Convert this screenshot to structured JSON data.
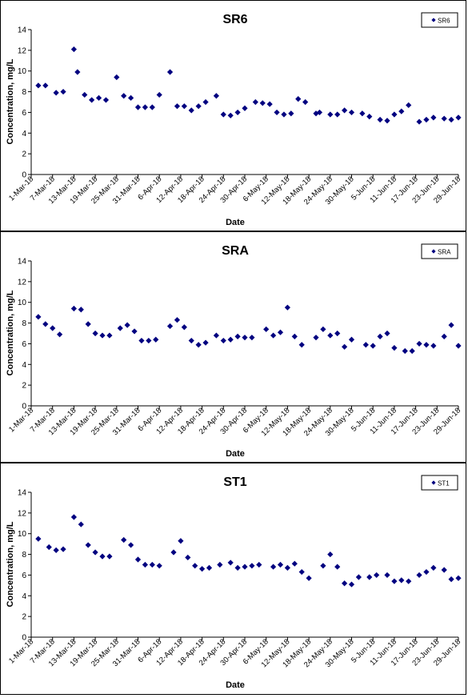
{
  "chart_data": [
    {
      "type": "scatter",
      "title": "SR6",
      "xlabel": "Date",
      "ylabel": "Concentration, mg/L",
      "ylim": [
        0,
        14
      ],
      "yticks": [
        0,
        2,
        4,
        6,
        8,
        10,
        12,
        14
      ],
      "xlim": [
        "2018-03-01",
        "2018-06-29"
      ],
      "xtick_labels": [
        "1-Mar-18",
        "7-Mar-18",
        "13-Mar-18",
        "19-Mar-18",
        "25-Mar-18",
        "31-Mar-18",
        "6-Apr-18",
        "12-Apr-18",
        "18-Apr-18",
        "24-Apr-18",
        "30-Apr-18",
        "6-May-18",
        "12-May-18",
        "18-May-18",
        "24-May-18",
        "30-May-18",
        "5-Jun-18",
        "11-Jun-18",
        "17-Jun-18",
        "23-Jun-18",
        "29-Jun-18"
      ],
      "legend": "top-right",
      "marker_color": "#000080",
      "series": [
        {
          "name": "SR6",
          "x": [
            "2018-03-03",
            "2018-03-05",
            "2018-03-08",
            "2018-03-10",
            "2018-03-13",
            "2018-03-14",
            "2018-03-16",
            "2018-03-18",
            "2018-03-20",
            "2018-03-22",
            "2018-03-25",
            "2018-03-27",
            "2018-03-29",
            "2018-03-31",
            "2018-04-02",
            "2018-04-04",
            "2018-04-06",
            "2018-04-09",
            "2018-04-11",
            "2018-04-13",
            "2018-04-15",
            "2018-04-17",
            "2018-04-19",
            "2018-04-22",
            "2018-04-24",
            "2018-04-26",
            "2018-04-28",
            "2018-04-30",
            "2018-05-03",
            "2018-05-05",
            "2018-05-07",
            "2018-05-09",
            "2018-05-11",
            "2018-05-13",
            "2018-05-15",
            "2018-05-17",
            "2018-05-20",
            "2018-05-21",
            "2018-05-24",
            "2018-05-26",
            "2018-05-28",
            "2018-05-30",
            "2018-06-02",
            "2018-06-04",
            "2018-06-07",
            "2018-06-09",
            "2018-06-11",
            "2018-06-13",
            "2018-06-15",
            "2018-06-18",
            "2018-06-20",
            "2018-06-22",
            "2018-06-25",
            "2018-06-27",
            "2018-06-29"
          ],
          "y": [
            8.6,
            8.6,
            7.9,
            8.0,
            12.1,
            9.9,
            7.7,
            7.2,
            7.4,
            7.2,
            9.4,
            7.6,
            7.4,
            6.5,
            6.5,
            6.5,
            7.7,
            9.9,
            6.6,
            6.6,
            6.2,
            6.6,
            7.0,
            7.6,
            5.8,
            5.7,
            6.0,
            6.4,
            7.0,
            6.9,
            6.8,
            6.0,
            5.8,
            5.9,
            7.3,
            7.0,
            5.9,
            6.0,
            5.8,
            5.8,
            6.2,
            6.0,
            5.9,
            5.6,
            5.3,
            5.2,
            5.8,
            6.1,
            6.7,
            5.1,
            5.3,
            5.5,
            5.4,
            5.3,
            5.5
          ]
        }
      ]
    },
    {
      "type": "scatter",
      "title": "SRA",
      "xlabel": "Date",
      "ylabel": "Concentration, mg/L",
      "ylim": [
        0,
        14
      ],
      "yticks": [
        0,
        2,
        4,
        6,
        8,
        10,
        12,
        14
      ],
      "xlim": [
        "2018-03-01",
        "2018-06-29"
      ],
      "xtick_labels": [
        "1-Mar-18",
        "7-Mar-18",
        "13-Mar-18",
        "19-Mar-18",
        "25-Mar-18",
        "31-Mar-18",
        "6-Apr-18",
        "12-Apr-18",
        "18-Apr-18",
        "24-Apr-18",
        "30-Apr-18",
        "6-May-18",
        "12-May-18",
        "18-May-18",
        "24-May-18",
        "30-May-18",
        "5-Jun-18",
        "11-Jun-18",
        "17-Jun-18",
        "23-Jun-18",
        "29-Jun-18"
      ],
      "legend": "top-right",
      "marker_color": "#000080",
      "series": [
        {
          "name": "SRA",
          "x": [
            "2018-03-03",
            "2018-03-05",
            "2018-03-07",
            "2018-03-09",
            "2018-03-13",
            "2018-03-15",
            "2018-03-17",
            "2018-03-19",
            "2018-03-21",
            "2018-03-23",
            "2018-03-26",
            "2018-03-28",
            "2018-03-30",
            "2018-04-01",
            "2018-04-03",
            "2018-04-05",
            "2018-04-09",
            "2018-04-11",
            "2018-04-13",
            "2018-04-15",
            "2018-04-17",
            "2018-04-19",
            "2018-04-22",
            "2018-04-24",
            "2018-04-26",
            "2018-04-28",
            "2018-04-30",
            "2018-05-02",
            "2018-05-06",
            "2018-05-08",
            "2018-05-10",
            "2018-05-12",
            "2018-05-14",
            "2018-05-16",
            "2018-05-20",
            "2018-05-22",
            "2018-05-24",
            "2018-05-26",
            "2018-05-28",
            "2018-05-30",
            "2018-06-03",
            "2018-06-05",
            "2018-06-07",
            "2018-06-09",
            "2018-06-11",
            "2018-06-14",
            "2018-06-16",
            "2018-06-18",
            "2018-06-20",
            "2018-06-22",
            "2018-06-25",
            "2018-06-27",
            "2018-06-29"
          ],
          "y": [
            8.6,
            7.9,
            7.5,
            6.9,
            9.4,
            9.3,
            7.9,
            7.0,
            6.8,
            6.8,
            7.5,
            7.8,
            7.2,
            6.3,
            6.3,
            6.4,
            7.7,
            8.3,
            7.6,
            6.3,
            5.9,
            6.1,
            6.8,
            6.3,
            6.4,
            6.7,
            6.6,
            6.6,
            7.4,
            6.8,
            7.1,
            9.5,
            6.7,
            5.9,
            6.6,
            7.4,
            6.8,
            7.0,
            5.7,
            6.4,
            5.9,
            5.8,
            6.7,
            7.0,
            5.6,
            5.3,
            5.3,
            6.0,
            5.9,
            5.8,
            6.7,
            7.8,
            5.8
          ]
        }
      ]
    },
    {
      "type": "scatter",
      "title": "ST1",
      "xlabel": "Date",
      "ylabel": "Concentration, mg/L",
      "ylim": [
        0,
        14
      ],
      "yticks": [
        0,
        2,
        4,
        6,
        8,
        10,
        12,
        14
      ],
      "xlim": [
        "2018-03-01",
        "2018-06-29"
      ],
      "xtick_labels": [
        "1-Mar-18",
        "7-Mar-18",
        "13-Mar-18",
        "19-Mar-18",
        "25-Mar-18",
        "31-Mar-18",
        "6-Apr-18",
        "12-Apr-18",
        "18-Apr-18",
        "24-Apr-18",
        "30-Apr-18",
        "6-May-18",
        "12-May-18",
        "18-May-18",
        "24-May-18",
        "30-May-18",
        "5-Jun-18",
        "11-Jun-18",
        "17-Jun-18",
        "23-Jun-18",
        "29-Jun-18"
      ],
      "legend": "top-right",
      "marker_color": "#000080",
      "series": [
        {
          "name": "ST1",
          "x": [
            "2018-03-03",
            "2018-03-06",
            "2018-03-08",
            "2018-03-10",
            "2018-03-13",
            "2018-03-15",
            "2018-03-17",
            "2018-03-19",
            "2018-03-21",
            "2018-03-23",
            "2018-03-27",
            "2018-03-29",
            "2018-03-31",
            "2018-04-02",
            "2018-04-04",
            "2018-04-06",
            "2018-04-10",
            "2018-04-12",
            "2018-04-14",
            "2018-04-16",
            "2018-04-18",
            "2018-04-20",
            "2018-04-23",
            "2018-04-26",
            "2018-04-28",
            "2018-04-30",
            "2018-05-02",
            "2018-05-04",
            "2018-05-08",
            "2018-05-10",
            "2018-05-12",
            "2018-05-14",
            "2018-05-16",
            "2018-05-18",
            "2018-05-22",
            "2018-05-24",
            "2018-05-26",
            "2018-05-28",
            "2018-05-30",
            "2018-06-01",
            "2018-06-04",
            "2018-06-06",
            "2018-06-09",
            "2018-06-11",
            "2018-06-13",
            "2018-06-15",
            "2018-06-18",
            "2018-06-20",
            "2018-06-22",
            "2018-06-25",
            "2018-06-27",
            "2018-06-29"
          ],
          "y": [
            9.5,
            8.7,
            8.4,
            8.5,
            11.6,
            10.9,
            8.9,
            8.2,
            7.8,
            7.8,
            9.4,
            8.9,
            7.5,
            7.0,
            7.0,
            6.9,
            8.2,
            9.3,
            7.7,
            6.9,
            6.6,
            6.7,
            7.0,
            7.2,
            6.7,
            6.8,
            6.9,
            7.0,
            6.8,
            7.0,
            6.7,
            7.1,
            6.3,
            5.7,
            6.9,
            8.0,
            6.8,
            5.2,
            5.1,
            5.8,
            5.8,
            6.0,
            6.0,
            5.4,
            5.5,
            5.4,
            6.0,
            6.3,
            6.7,
            6.5,
            5.6,
            5.7
          ]
        }
      ]
    }
  ]
}
